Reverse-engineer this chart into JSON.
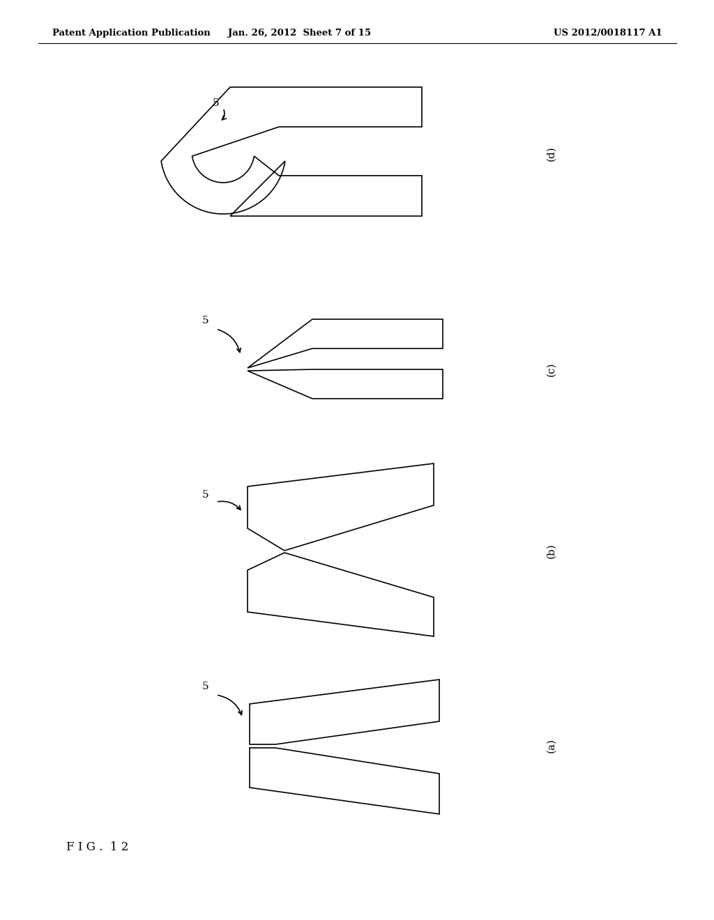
{
  "background_color": "#ffffff",
  "header_left": "Patent Application Publication",
  "header_center": "Jan. 26, 2012  Sheet 7 of 15",
  "header_right": "US 2012/0018117 A1",
  "fig_label": "F I G .  1 2",
  "line_color": "#000000",
  "line_width": 1.2
}
